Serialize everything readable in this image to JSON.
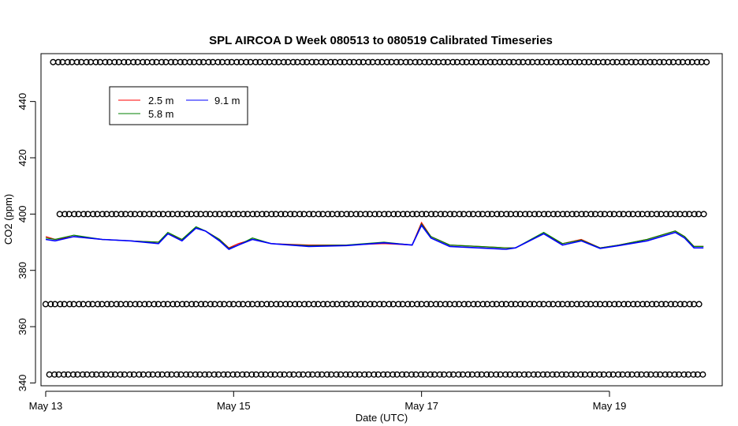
{
  "chart_data": {
    "type": "line",
    "title": "SPL AIRCOA D  Week 080513 to 080519  Calibrated Timeseries",
    "xlabel": "Date (UTC)",
    "ylabel": "CO2 (ppm)",
    "xlim": [
      -0.05,
      7.2
    ],
    "ylim": [
      339,
      457
    ],
    "x_ticks": [
      {
        "value": 0,
        "label": "May 13"
      },
      {
        "value": 2,
        "label": "May 15"
      },
      {
        "value": 4,
        "label": "May 17"
      },
      {
        "value": 6,
        "label": "May 19"
      }
    ],
    "y_ticks": [
      340,
      360,
      380,
      400,
      420,
      440
    ],
    "legend": {
      "position": "top-left",
      "entries": [
        {
          "label": "2.5 m",
          "color": "#ff0000"
        },
        {
          "label": "5.8 m",
          "color": "#008000"
        },
        {
          "label": "9.1 m",
          "color": "#0000ff"
        }
      ]
    },
    "series": [
      {
        "name": "2.5 m",
        "color": "#ff0000",
        "x": [
          0,
          0.1,
          0.3,
          0.6,
          0.9,
          1.2,
          1.3,
          1.45,
          1.6,
          1.7,
          1.85,
          1.95,
          2.05,
          2.2,
          2.4,
          2.8,
          3.2,
          3.6,
          3.9,
          4.0,
          4.1,
          4.3,
          4.6,
          4.9,
          5.0,
          5.3,
          5.5,
          5.7,
          5.9,
          6.1,
          6.4,
          6.7,
          6.8,
          6.9,
          7.0
        ],
        "y": [
          392,
          391,
          392,
          391,
          390.5,
          390,
          393,
          391,
          395,
          394,
          391,
          388,
          389.5,
          391,
          389.5,
          389,
          389,
          389.5,
          389,
          397,
          392,
          389,
          388.5,
          388,
          388,
          393,
          389.5,
          391,
          388,
          389,
          391,
          394,
          392,
          388.5,
          388.5
        ]
      },
      {
        "name": "5.8 m",
        "color": "#008000",
        "x": [
          0,
          0.1,
          0.3,
          0.6,
          0.9,
          1.2,
          1.3,
          1.45,
          1.6,
          1.7,
          1.85,
          1.95,
          2.05,
          2.2,
          2.4,
          2.8,
          3.2,
          3.6,
          3.9,
          4.0,
          4.1,
          4.3,
          4.6,
          4.9,
          5.0,
          5.3,
          5.5,
          5.7,
          5.9,
          6.1,
          6.4,
          6.7,
          6.8,
          6.9,
          7.0
        ],
        "y": [
          391.5,
          391,
          392.5,
          391,
          390.5,
          390,
          393.5,
          391,
          395.5,
          394,
          391,
          387.8,
          389,
          391.5,
          389.5,
          388.8,
          389,
          390,
          389,
          396.5,
          392,
          389,
          388.5,
          388,
          388,
          393.5,
          389.5,
          390.8,
          388,
          389,
          391,
          394,
          392,
          388.5,
          388.5
        ]
      },
      {
        "name": "9.1 m",
        "color": "#0000ff",
        "x": [
          0,
          0.1,
          0.3,
          0.6,
          0.9,
          1.2,
          1.3,
          1.45,
          1.6,
          1.7,
          1.85,
          1.95,
          2.05,
          2.2,
          2.4,
          2.8,
          3.2,
          3.6,
          3.9,
          4.0,
          4.1,
          4.3,
          4.6,
          4.9,
          5.0,
          5.3,
          5.5,
          5.7,
          5.9,
          6.1,
          6.4,
          6.7,
          6.8,
          6.9,
          7.0
        ],
        "y": [
          391,
          390.5,
          392,
          391,
          390.5,
          389.5,
          393,
          390.5,
          395,
          394,
          390.5,
          387.5,
          389,
          391,
          389.5,
          388.5,
          388.8,
          389.8,
          389,
          396,
          391.5,
          388.5,
          388,
          387.5,
          388,
          393,
          389,
          390.5,
          387.8,
          388.8,
          390.5,
          393.5,
          391.5,
          388,
          388
        ]
      }
    ],
    "marker_rows": [
      454,
      400,
      368,
      343
    ]
  }
}
